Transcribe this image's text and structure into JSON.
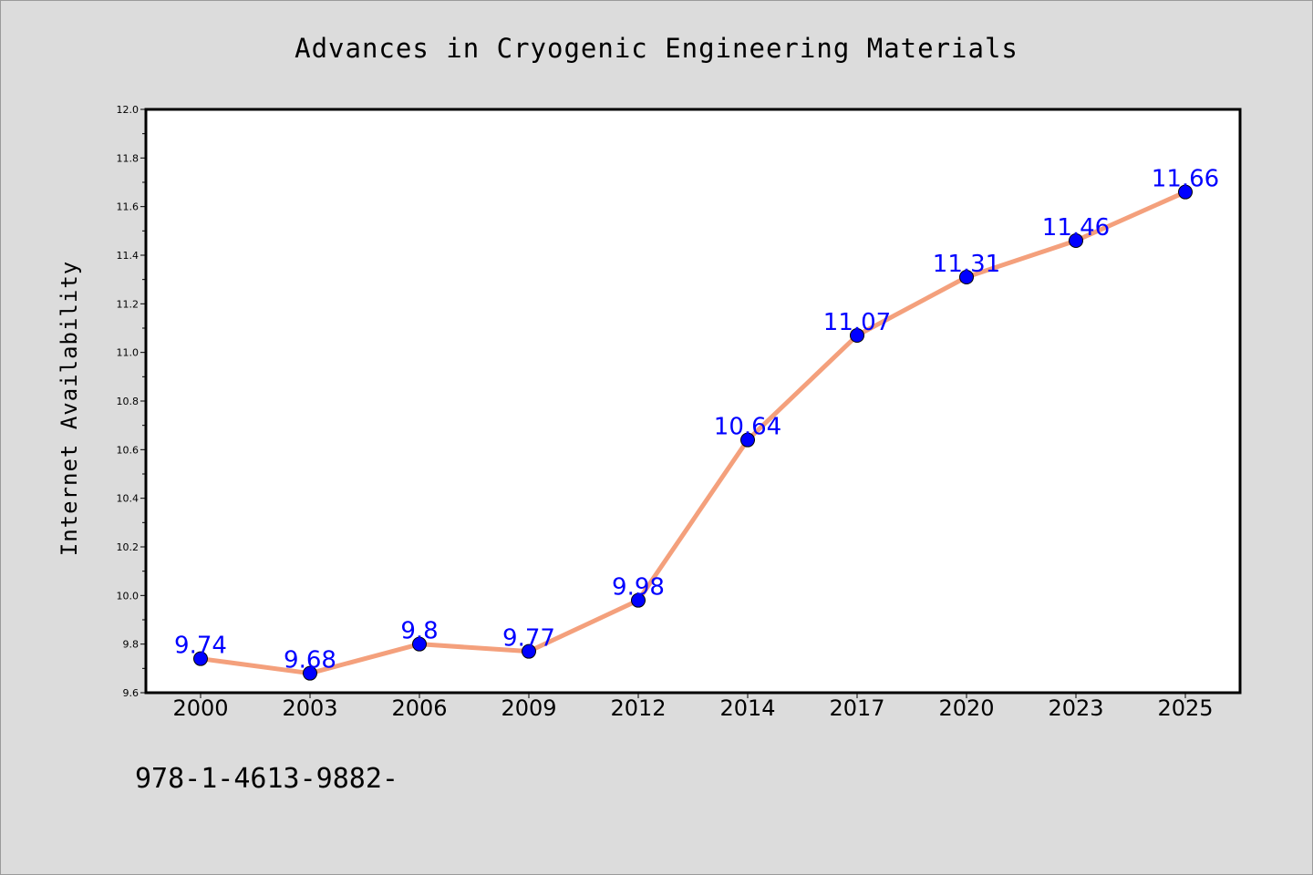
{
  "chart_data": {
    "type": "line",
    "title": "Advances in Cryogenic Engineering Materials",
    "xlabel": "",
    "ylabel": "Internet Availability",
    "categories": [
      "2000",
      "2003",
      "2006",
      "2009",
      "2012",
      "2014",
      "2017",
      "2020",
      "2023",
      "2025"
    ],
    "series": [
      {
        "values": [
          9.74,
          9.68,
          9.8,
          9.77,
          9.98,
          10.64,
          11.07,
          11.31,
          11.46,
          11.66
        ],
        "labels": [
          "9.74",
          "9.68",
          "9.8",
          "9.77",
          "9.98",
          "10.64",
          "11.07",
          "11.31",
          "11.46",
          "11.66"
        ],
        "line_color": "#f4a07c",
        "marker_color": "#0000ff"
      }
    ],
    "ylim": [
      9.6,
      12.0
    ],
    "yticks": [
      "9.6",
      "9.8",
      "10.0",
      "10.2",
      "10.4",
      "10.6",
      "10.8",
      "11.0",
      "11.2",
      "11.4",
      "11.6",
      "11.8",
      "12.0"
    ],
    "grid": false,
    "legend": "none"
  },
  "footer": {
    "text": "978-1-4613-9882-"
  },
  "colors": {
    "background": "#dcdcdc",
    "plot_area": "#ffffff",
    "label_color": "#0000ff"
  }
}
